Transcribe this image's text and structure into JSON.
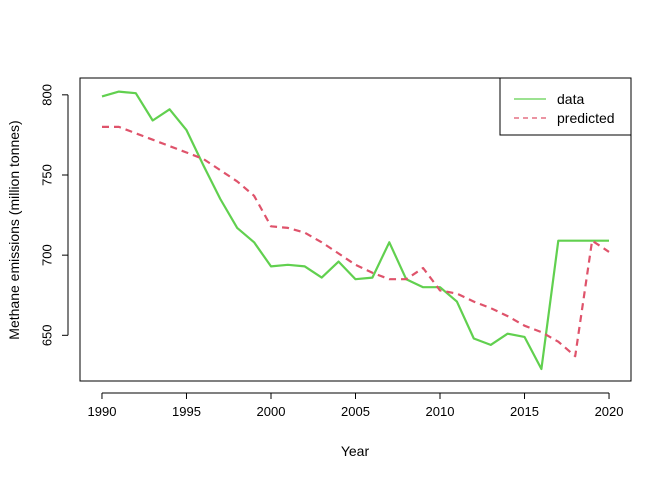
{
  "chart_data": {
    "type": "line",
    "xlabel": "Year",
    "ylabel": "Methane emissions (million tonnes)",
    "xlim": [
      1988.7,
      2021.3
    ],
    "ylim": [
      621.5,
      810.5
    ],
    "x_ticks": [
      1990,
      1995,
      2000,
      2005,
      2010,
      2015,
      2020
    ],
    "y_ticks": [
      650,
      700,
      750,
      800
    ],
    "grid": false,
    "legend": {
      "position": "top-right",
      "box": true
    },
    "x": [
      1990,
      1991,
      1992,
      1993,
      1994,
      1995,
      1996,
      1997,
      1998,
      1999,
      2000,
      2001,
      2002,
      2003,
      2004,
      2005,
      2006,
      2007,
      2008,
      2009,
      2010,
      2011,
      2012,
      2013,
      2014,
      2015,
      2016,
      2017,
      2018,
      2019,
      2020
    ],
    "series": [
      {
        "name": "data",
        "color": "#61D04F",
        "line_style": "solid",
        "values": [
          799,
          802,
          801,
          784,
          791,
          778,
          756,
          735,
          717,
          708,
          693,
          694,
          693,
          686,
          696,
          685,
          686,
          708,
          685,
          680,
          680,
          671,
          648,
          644,
          651,
          649,
          629,
          709,
          709,
          709,
          709
        ]
      },
      {
        "name": "predicted",
        "color": "#DF536B",
        "line_style": "dashed",
        "values": [
          780,
          780,
          776,
          772,
          768,
          764,
          760,
          753,
          746,
          737,
          718,
          717,
          714,
          708,
          701,
          694,
          689,
          685,
          685,
          692,
          678,
          676,
          671,
          667,
          662,
          656,
          652,
          646,
          637,
          709,
          702
        ]
      }
    ]
  }
}
